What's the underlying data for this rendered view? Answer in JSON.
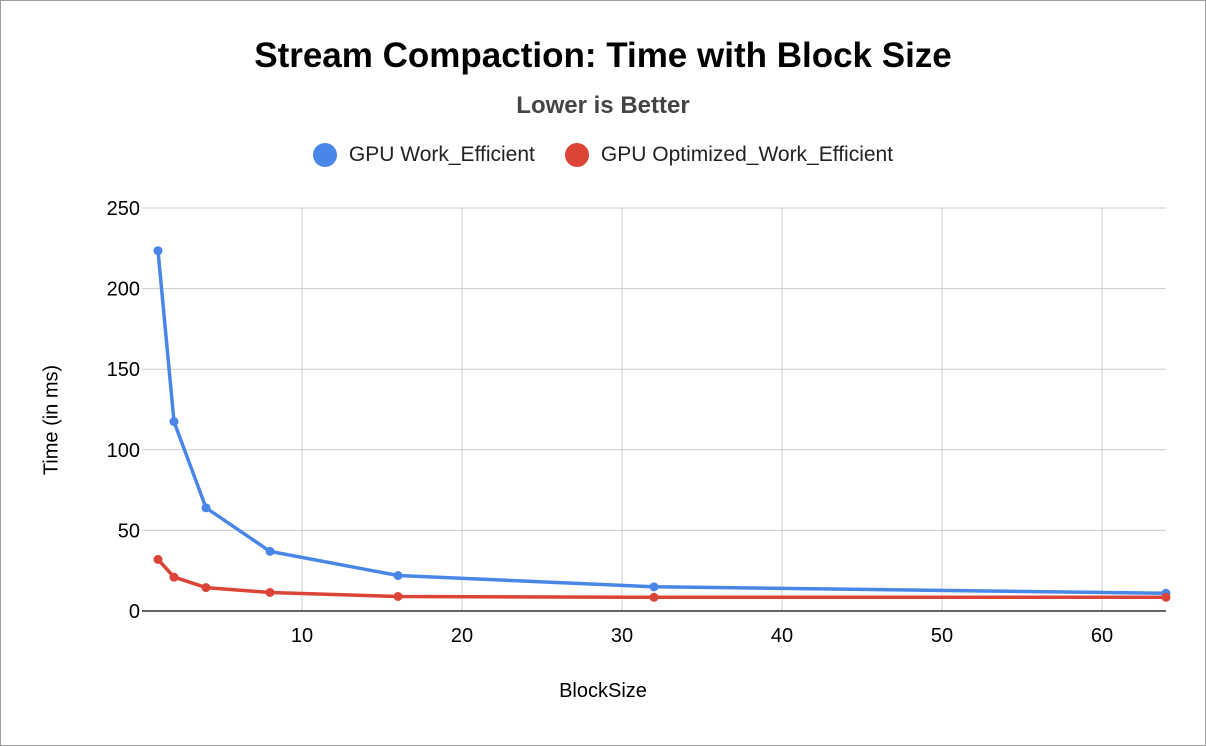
{
  "chart_data": {
    "type": "line",
    "title": "Stream Compaction: Time with Block Size",
    "subtitle": "Lower is Better",
    "xlabel": "BlockSize",
    "ylabel": "Time (in ms)",
    "xlim": [
      0,
      64
    ],
    "ylim": [
      0,
      250
    ],
    "x_ticks": [
      10,
      20,
      30,
      40,
      50,
      60
    ],
    "y_ticks": [
      0,
      50,
      100,
      150,
      200,
      250
    ],
    "grid": true,
    "legend_position": "top",
    "series": [
      {
        "name": "GPU Work_Efficient",
        "color": "#4a86e8",
        "x": [
          1,
          2,
          4,
          8,
          16,
          32,
          64
        ],
        "values": [
          223.5,
          117.5,
          64,
          37,
          22,
          15,
          11
        ]
      },
      {
        "name": "GPU Optimized_Work_Efficient",
        "color": "#db4437",
        "x": [
          1,
          2,
          4,
          8,
          16,
          32,
          64
        ],
        "values": [
          32,
          21,
          14.5,
          11.5,
          9,
          8.5,
          8.5
        ]
      }
    ]
  }
}
